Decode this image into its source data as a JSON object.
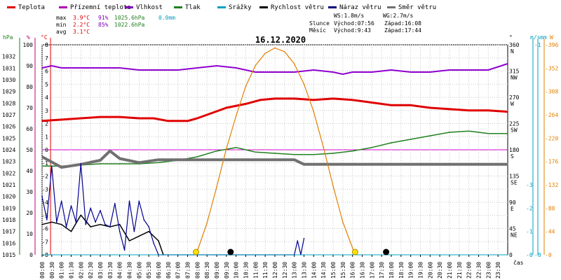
{
  "legend": [
    {
      "label": "Teplota",
      "color": "#e00000"
    },
    {
      "label": "Přízemní teplota",
      "color": "#b000b0"
    },
    {
      "label": "Vlhkost",
      "color": "#8000c0"
    },
    {
      "label": "Tlak",
      "color": "#208020"
    },
    {
      "label": "Srážky",
      "color": "#00a0c0"
    },
    {
      "label": "Rychlost větru",
      "color": "#000000"
    },
    {
      "label": "Náraz větru",
      "color": "#000080"
    },
    {
      "label": "Směr větru",
      "color": "#707070"
    }
  ],
  "stats": {
    "labels": [
      "max",
      "min",
      "avg"
    ],
    "max": {
      "temp": "3.9°C",
      "hum": "91%",
      "press": "1025.6hPa",
      "rain": "0.0mm"
    },
    "min": {
      "temp": "2.2°C",
      "hum": "85%",
      "press": "1022.6hPa"
    },
    "avg": {
      "temp": "3.1°C"
    }
  },
  "info": {
    "ws": "WS:1.8m/s",
    "wg": "WG:2.7m/s",
    "sun_label": "Slunce",
    "sun_rise": "Východ:07:56",
    "sun_set": "Západ:16:08",
    "moon_label": "Měsíc",
    "moon_rise": "Východ:9:43",
    "moon_set": "Západ:17:44"
  },
  "title": "16.12.2020",
  "units": {
    "hpa": "hPa",
    "pct": "%",
    "degc": "°C",
    "deg": "°",
    "ms": "m/s",
    "mm": "mm",
    "w": "W",
    "time": "čas"
  },
  "colors": {
    "temp": "#e00000",
    "hum": "#9000d0",
    "press": "#208020",
    "rain": "#00a0c0",
    "wind": "#000000",
    "gust": "#000090",
    "dir": "#707070",
    "solar": "#e08000",
    "zero": "#d000d0",
    "grid": "#c8c8c8",
    "hpa_axis": "#208020",
    "pct_axis": "#c00080"
  },
  "chart_data": {
    "type": "line",
    "x_range": [
      "00:00",
      "24:00"
    ],
    "x_ticks": [
      "00:00",
      "00:30",
      "01:00",
      "01:30",
      "02:00",
      "02:30",
      "03:00",
      "03:30",
      "04:00",
      "04:30",
      "05:00",
      "05:30",
      "06:00",
      "06:30",
      "07:00",
      "07:30",
      "08:00",
      "08:30",
      "09:00",
      "09:30",
      "10:00",
      "10:30",
      "11:00",
      "11:30",
      "12:00",
      "12:30",
      "13:00",
      "13:30",
      "14:00",
      "14:30",
      "15:00",
      "15:30",
      "16:00",
      "16:30",
      "17:00",
      "17:30",
      "18:00",
      "18:30",
      "19:00",
      "19:30",
      "20:00",
      "20:30",
      "21:00",
      "21:30",
      "22:00",
      "22:30",
      "23:00",
      "23:30"
    ],
    "grid": true,
    "axes": {
      "pressure_hpa": {
        "range": [
          1015,
          1033
        ],
        "ticks": [
          1015,
          1016,
          1017,
          1018,
          1019,
          1020,
          1021,
          1022,
          1023,
          1024,
          1025,
          1026,
          1027,
          1028,
          1029,
          1030,
          1031,
          1032
        ]
      },
      "humidity_pct": {
        "range": [
          0,
          100
        ],
        "ticks": [
          0,
          10,
          20,
          30,
          40,
          50,
          60,
          70,
          80,
          90,
          100
        ]
      },
      "temperature_c": {
        "range": [
          -8,
          8
        ],
        "ticks": [
          -8,
          -7,
          -6,
          -5,
          -4,
          -3,
          -2,
          -1,
          0,
          1,
          2,
          3,
          4,
          5,
          6,
          7,
          8
        ]
      },
      "wind_dir_deg": {
        "range": [
          0,
          360
        ],
        "ticks": [
          0,
          45,
          90,
          135,
          180,
          225,
          270,
          315,
          360
        ],
        "labels": [
          "",
          "NE",
          "E",
          "SE",
          "S",
          "SW",
          "W",
          "NW",
          "N"
        ]
      },
      "wind_ms": {
        "range": [
          0,
          9
        ],
        "ticks": [
          0,
          1,
          2,
          3
        ]
      },
      "rain_mm": {
        "range": [
          0,
          1
        ],
        "ticks": [
          0,
          1
        ]
      },
      "solar_w": {
        "range": [
          0,
          396
        ],
        "ticks": [
          0,
          44,
          88,
          132,
          176,
          220,
          264,
          308,
          352,
          396
        ]
      }
    },
    "series": [
      {
        "name": "Teplota",
        "axis": "temperature_c",
        "x": [
          "00:00",
          "01:00",
          "02:00",
          "03:00",
          "04:00",
          "05:00",
          "05:45",
          "06:30",
          "07:30",
          "08:00",
          "08:45",
          "09:30",
          "10:30",
          "11:15",
          "12:00",
          "13:00",
          "14:00",
          "15:00",
          "16:00",
          "17:00",
          "18:00",
          "19:00",
          "20:00",
          "21:00",
          "22:00",
          "23:00",
          "24:00"
        ],
        "y": [
          2.2,
          2.3,
          2.4,
          2.5,
          2.5,
          2.4,
          2.4,
          2.2,
          2.2,
          2.4,
          2.8,
          3.2,
          3.5,
          3.8,
          3.9,
          3.9,
          3.8,
          3.9,
          3.8,
          3.6,
          3.4,
          3.4,
          3.2,
          3.1,
          3.0,
          3.0,
          2.9
        ]
      },
      {
        "name": "Vlhkost",
        "axis": "humidity_pct",
        "x": [
          "00:00",
          "00:30",
          "01:00",
          "02:00",
          "03:00",
          "04:00",
          "05:00",
          "06:00",
          "07:00",
          "08:00",
          "09:00",
          "10:00",
          "11:00",
          "12:00",
          "13:00",
          "14:00",
          "15:00",
          "15:30",
          "16:00",
          "17:00",
          "18:00",
          "19:00",
          "20:00",
          "21:00",
          "22:00",
          "23:00",
          "24:00"
        ],
        "y": [
          89,
          90,
          89,
          89,
          89,
          89,
          88,
          88,
          88,
          89,
          90,
          89,
          87,
          87,
          87,
          88,
          87,
          86,
          87,
          87,
          88,
          87,
          87,
          88,
          88,
          88,
          91
        ]
      },
      {
        "name": "Tlak",
        "axis": "pressure_hpa",
        "x": [
          "00:00",
          "01:00",
          "02:00",
          "03:00",
          "04:00",
          "05:00",
          "06:00",
          "07:00",
          "08:00",
          "09:00",
          "10:00",
          "10:30",
          "11:00",
          "12:00",
          "13:00",
          "14:00",
          "15:00",
          "16:00",
          "17:00",
          "18:00",
          "19:00",
          "20:00",
          "21:00",
          "22:00",
          "23:00",
          "24:00"
        ],
        "y": [
          1022.6,
          1022.6,
          1022.7,
          1022.8,
          1022.8,
          1022.8,
          1022.9,
          1023.1,
          1023.4,
          1023.9,
          1024.2,
          1024.0,
          1023.8,
          1023.7,
          1023.6,
          1023.6,
          1023.7,
          1023.9,
          1024.2,
          1024.6,
          1024.9,
          1025.2,
          1025.5,
          1025.6,
          1025.4,
          1025.4
        ]
      },
      {
        "name": "Směr větru",
        "axis": "wind_dir_deg",
        "x": [
          "00:00",
          "01:00",
          "02:00",
          "03:00",
          "03:30",
          "04:00",
          "05:00",
          "06:00",
          "07:00",
          "08:00",
          "09:00",
          "10:00",
          "11:00",
          "12:00",
          "13:00",
          "13:30",
          "14:00",
          "15:00",
          "16:00",
          "17:00",
          "18:00",
          "19:00",
          "20:00",
          "21:00",
          "22:00",
          "23:00",
          "24:00"
        ],
        "y": [
          168,
          150,
          155,
          162,
          178,
          165,
          158,
          163,
          163,
          163,
          163,
          163,
          163,
          163,
          163,
          155,
          155,
          155,
          155,
          155,
          155,
          155,
          155,
          155,
          155,
          155,
          155
        ]
      },
      {
        "name": "Rychlost větru",
        "axis": "wind_ms",
        "x": [
          "00:00",
          "00:30",
          "01:00",
          "01:30",
          "02:00",
          "02:30",
          "03:00",
          "03:30",
          "04:00",
          "04:30",
          "05:00",
          "05:30",
          "06:00",
          "06:15"
        ],
        "y": [
          1.3,
          1.4,
          1.3,
          1.0,
          1.7,
          1.2,
          1.3,
          1.2,
          1.3,
          0.6,
          0.8,
          1.0,
          0.6,
          0
        ]
      },
      {
        "name": "Náraz větru",
        "axis": "wind_ms",
        "x": [
          "00:00",
          "00:15",
          "00:30",
          "00:45",
          "01:00",
          "01:15",
          "01:30",
          "01:45",
          "02:00",
          "02:15",
          "02:30",
          "02:45",
          "03:00",
          "03:15",
          "03:30",
          "03:45",
          "04:00",
          "04:15",
          "04:30",
          "04:45",
          "05:00",
          "05:15",
          "05:30",
          "05:45",
          "06:00",
          "13:00",
          "13:10",
          "13:20",
          "13:30"
        ],
        "y": [
          2.5,
          1.5,
          3.8,
          1.4,
          2.3,
          1.2,
          2.1,
          1.4,
          3.9,
          1.3,
          2.0,
          1.4,
          1.9,
          1.3,
          1.2,
          2.2,
          1.0,
          0.2,
          2.3,
          1.0,
          2.3,
          1.5,
          1.2,
          0.5,
          0,
          0,
          0.6,
          0,
          0.7
        ]
      },
      {
        "name": "Solar",
        "axis": "solar_w",
        "x": [
          "07:56",
          "08:30",
          "09:00",
          "09:30",
          "10:00",
          "10:30",
          "11:00",
          "11:30",
          "12:00",
          "12:30",
          "13:00",
          "13:30",
          "14:00",
          "14:30",
          "15:00",
          "15:30",
          "16:08"
        ],
        "y": [
          0,
          60,
          128,
          200,
          262,
          318,
          357,
          380,
          390,
          383,
          360,
          322,
          270,
          203,
          130,
          62,
          0
        ]
      },
      {
        "name": "Srážky",
        "axis": "rain_mm",
        "x": [
          "00:00",
          "24:00"
        ],
        "y": [
          0,
          0
        ]
      }
    ],
    "markers": [
      {
        "kind": "sunrise",
        "time": "07:56"
      },
      {
        "kind": "sunset",
        "time": "16:08"
      },
      {
        "kind": "moonrise",
        "time": "09:43"
      },
      {
        "kind": "moonset",
        "time": "17:44"
      }
    ]
  }
}
